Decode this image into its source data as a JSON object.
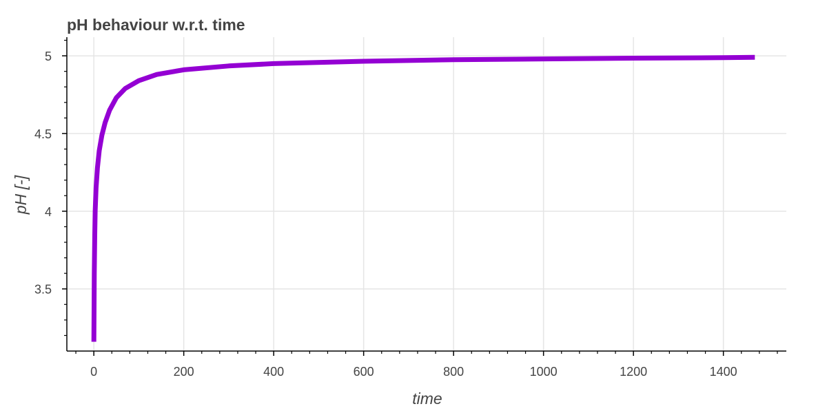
{
  "chart_data": {
    "type": "line",
    "title": "pH behaviour w.r.t. time",
    "xlabel": "time",
    "ylabel": "pH [-]",
    "xlim": [
      -60,
      1540
    ],
    "ylim": [
      3.1,
      5.12
    ],
    "x_ticks": [
      0,
      200,
      400,
      600,
      800,
      1000,
      1200,
      1400
    ],
    "x_tick_labels": [
      "0",
      "200",
      "400",
      "600",
      "800",
      "1000",
      "1200",
      "1400"
    ],
    "y_ticks": [
      3.5,
      4,
      4.5,
      5
    ],
    "y_tick_labels": [
      "3.5",
      "4",
      "4.5",
      "5"
    ],
    "grid": true,
    "legend": "none",
    "series": [
      {
        "color": "#9400D3",
        "x": [
          0,
          1,
          2,
          3,
          5,
          8,
          12,
          18,
          25,
          35,
          50,
          70,
          100,
          140,
          200,
          300,
          400,
          600,
          800,
          1000,
          1200,
          1400,
          1470
        ],
        "y": [
          3.16,
          3.6,
          3.85,
          4.0,
          4.15,
          4.28,
          4.39,
          4.49,
          4.57,
          4.65,
          4.73,
          4.79,
          4.84,
          4.88,
          4.91,
          4.935,
          4.95,
          4.965,
          4.975,
          4.98,
          4.985,
          4.988,
          4.99
        ]
      }
    ]
  }
}
